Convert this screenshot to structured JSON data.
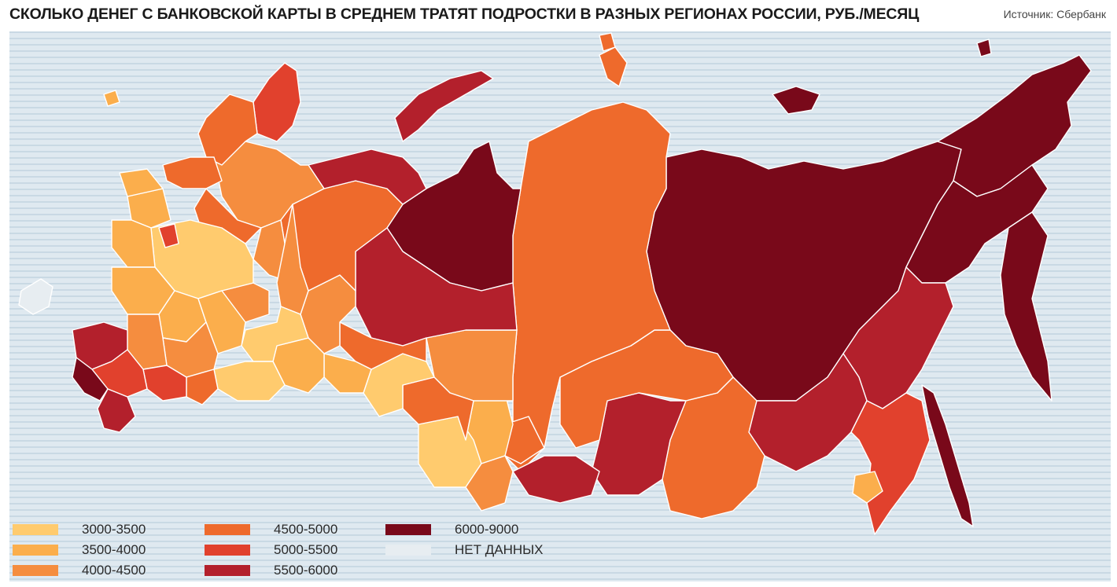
{
  "title": "СКОЛЬКО ДЕНЕГ С БАНКОВСКОЙ КАРТЫ В СРЕДНЕМ ТРАТЯТ ПОДРОСТКИ В РАЗНЫХ РЕГИОНАХ РОССИИ, РУБ./МЕСЯЦ",
  "source": "Источник: Сбербанк",
  "legend": [
    {
      "label": "3000-3500",
      "color": "#ffcb6e"
    },
    {
      "label": "3500-4000",
      "color": "#fbae4c"
    },
    {
      "label": "4000-4500",
      "color": "#f58d3f"
    },
    {
      "label": "4500-5000",
      "color": "#ee6a2c"
    },
    {
      "label": "5000-5500",
      "color": "#e1412d"
    },
    {
      "label": "5500-6000",
      "color": "#b3202c"
    },
    {
      "label": "6000-9000",
      "color": "#79091a"
    },
    {
      "label": "НЕТ ДАННЫХ",
      "color": "#e7edf1"
    }
  ]
}
